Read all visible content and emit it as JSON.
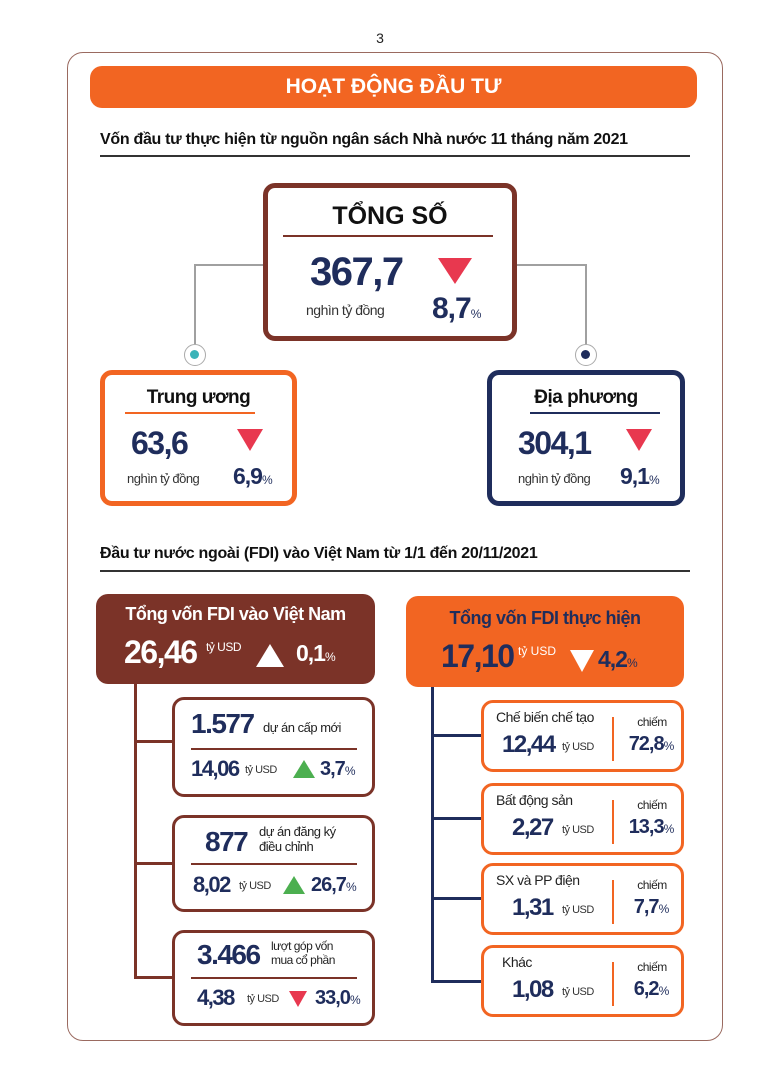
{
  "page_number": "3",
  "header": "HOẠT ĐỘNG ĐẦU TƯ",
  "section1": {
    "title": "Vốn đầu tư thực hiện từ nguồn ngân sách Nhà nước 11 tháng năm 2021",
    "total": {
      "title": "TỔNG SỐ",
      "value": "367,7",
      "unit": "nghìn tỷ đồng",
      "change": "8,7",
      "direction": "down"
    },
    "central": {
      "title": "Trung ương",
      "value": "63,6",
      "unit": "nghìn tỷ đồng",
      "change": "6,9",
      "direction": "down"
    },
    "local": {
      "title": "Địa phương",
      "value": "304,1",
      "unit": "nghìn tỷ đồng",
      "change": "9,1",
      "direction": "down"
    }
  },
  "section2": {
    "title": "Đầu tư nước ngoài (FDI) vào Việt Nam từ 1/1 đến 20/11/2021",
    "registered": {
      "title": "Tổng vốn FDI vào Việt Nam",
      "value": "26,46",
      "unit": "tỷ USD",
      "change": "0,1",
      "direction": "up",
      "items": [
        {
          "count": "1.577",
          "label1": "dự án cấp mới",
          "label2": "",
          "value": "14,06",
          "unit": "tỷ USD",
          "change": "3,7",
          "direction": "up"
        },
        {
          "count": "877",
          "label1": "dự án đăng ký",
          "label2": "điều chỉnh",
          "value": "8,02",
          "unit": "tỷ USD",
          "change": "26,7",
          "direction": "up"
        },
        {
          "count": "3.466",
          "label1": "lượt góp vốn",
          "label2": "mua cổ phần",
          "value": "4,38",
          "unit": "tỷ USD",
          "change": "33,0",
          "direction": "down"
        }
      ]
    },
    "disbursed": {
      "title": "Tổng vốn FDI thực hiện",
      "value": "17,10",
      "unit": "tỷ USD",
      "change": "4,2",
      "direction": "down",
      "share_label": "chiếm",
      "items": [
        {
          "sector": "Chế biến chế tạo",
          "value": "12,44",
          "unit": "tỷ USD",
          "share": "72,8"
        },
        {
          "sector": "Bất động sản",
          "value": "2,27",
          "unit": "tỷ USD",
          "share": "13,3"
        },
        {
          "sector": "SX và PP điện",
          "value": "1,31",
          "unit": "tỷ USD",
          "share": "7,7"
        },
        {
          "sector": "Khác",
          "value": "1,08",
          "unit": "tỷ USD",
          "share": "6,2"
        }
      ]
    }
  },
  "percent_sign": "%",
  "colors": {
    "orange": "#f26522",
    "brown": "#7b3328",
    "navy": "#1f2d5c",
    "down": "#e8384f",
    "up": "#4caf50",
    "teal": "#3bb3b8"
  }
}
